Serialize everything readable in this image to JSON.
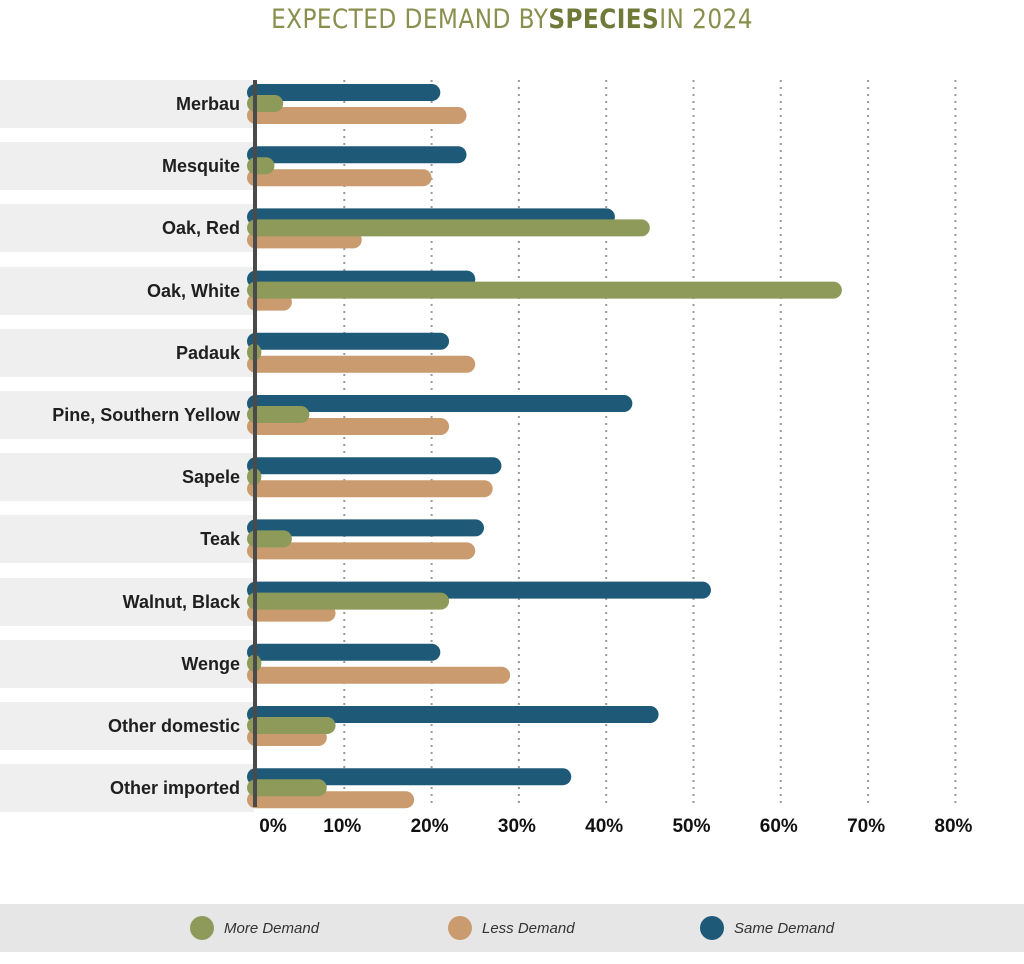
{
  "title": {
    "part1": "EXPECTED DEMAND BY ",
    "part2": "SPECIES",
    "part3": " IN 2024"
  },
  "chart_data": {
    "type": "bar",
    "orientation": "horizontal",
    "title": "EXPECTED DEMAND BY SPECIES IN 2024",
    "categories": [
      "Merbau",
      "Mesquite",
      "Oak, Red",
      "Oak, White",
      "Padauk",
      "Pine, Southern Yellow",
      "Sapele",
      "Teak",
      "Walnut, Black",
      "Wenge",
      "Other domestic",
      "Other imported"
    ],
    "series": [
      {
        "name": "Same Demand",
        "color": "#1e5a78",
        "values": [
          21,
          24,
          41,
          25,
          22,
          43,
          28,
          26,
          52,
          21,
          46,
          36
        ]
      },
      {
        "name": "More Demand",
        "color": "#8e9a5a",
        "values": [
          3,
          2,
          45,
          67,
          0.5,
          6,
          0.5,
          4,
          22,
          0.5,
          9,
          8
        ]
      },
      {
        "name": "Less Demand",
        "color": "#c99b6e",
        "values": [
          24,
          20,
          12,
          4,
          25,
          22,
          27,
          25,
          9,
          29,
          8,
          18
        ]
      }
    ],
    "xticks": [
      "0%",
      "10%",
      "20%",
      "30%",
      "40%",
      "50%",
      "60%",
      "70%",
      "80%"
    ],
    "xlim": [
      0,
      80
    ],
    "grid": true,
    "legend_position": "bottom"
  },
  "legend": [
    {
      "label": "More Demand",
      "color": "#8e9a5a"
    },
    {
      "label": "Less Demand",
      "color": "#c99b6e"
    },
    {
      "label": "Same Demand",
      "color": "#1e5a78"
    }
  ]
}
